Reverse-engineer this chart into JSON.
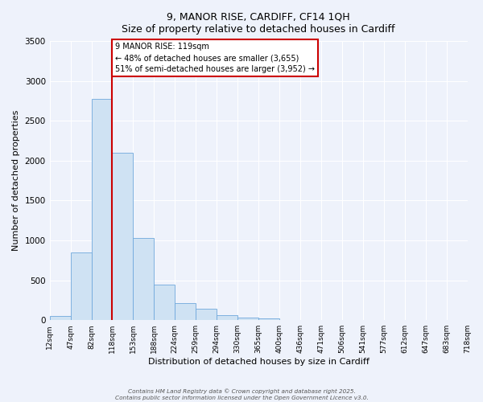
{
  "title_line1": "9, MANOR RISE, CARDIFF, CF14 1QH",
  "title_line2": "Size of property relative to detached houses in Cardiff",
  "xlabel": "Distribution of detached houses by size in Cardiff",
  "ylabel": "Number of detached properties",
  "bin_labels": [
    "12sqm",
    "47sqm",
    "82sqm",
    "118sqm",
    "153sqm",
    "188sqm",
    "224sqm",
    "259sqm",
    "294sqm",
    "330sqm",
    "365sqm",
    "400sqm",
    "436sqm",
    "471sqm",
    "506sqm",
    "541sqm",
    "577sqm",
    "612sqm",
    "647sqm",
    "683sqm",
    "718sqm"
  ],
  "bar_values": [
    55,
    850,
    2775,
    2100,
    1030,
    450,
    210,
    145,
    60,
    30,
    20,
    0,
    0,
    0,
    0,
    0,
    0,
    0,
    0,
    0
  ],
  "bar_color": "#cfe2f3",
  "bar_edge_color": "#6fa8dc",
  "vline_x_index": 3,
  "vline_color": "#cc0000",
  "annotation_title": "9 MANOR RISE: 119sqm",
  "annotation_line1": "← 48% of detached houses are smaller (3,655)",
  "annotation_line2": "51% of semi-detached houses are larger (3,952) →",
  "annotation_box_facecolor": "#ffffff",
  "annotation_box_edgecolor": "#cc0000",
  "ylim": [
    0,
    3500
  ],
  "yticks": [
    0,
    500,
    1000,
    1500,
    2000,
    2500,
    3000,
    3500
  ],
  "background_color": "#eef2fb",
  "grid_color": "#ffffff",
  "footnote1": "Contains HM Land Registry data © Crown copyright and database right 2025.",
  "footnote2": "Contains public sector information licensed under the Open Government Licence v3.0."
}
